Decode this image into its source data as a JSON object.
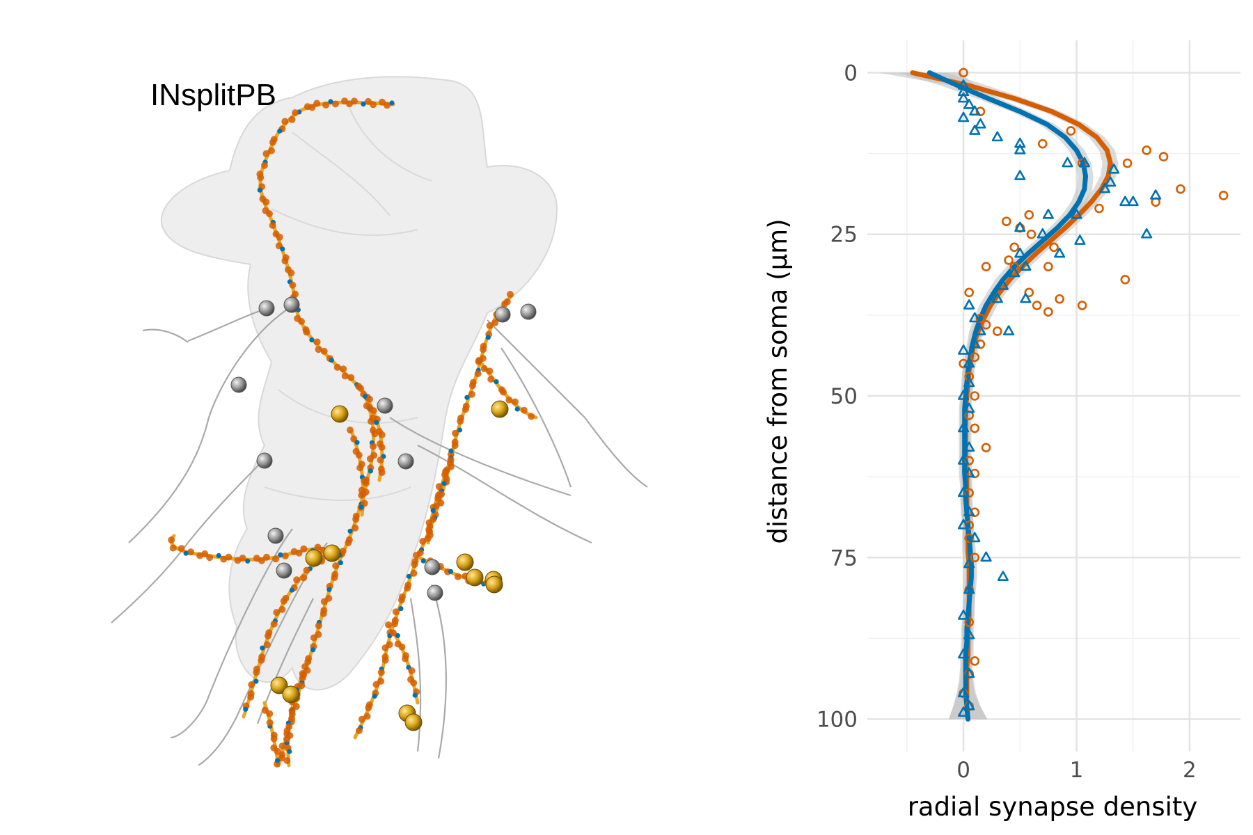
{
  "figure": {
    "neuron_label": "INsplitPB"
  },
  "colors": {
    "series_a": "#D55E00",
    "series_b": "#0072B2",
    "dendrite": "#E69F00",
    "synapse_orange": "#D55E00",
    "synapse_blue": "#0072B2",
    "ribbon": "#BDBDBD",
    "grid_major": "#E3E3E3",
    "grid_minor": "#F0F0F0",
    "mesh_fill": "#EBEBEB",
    "soma_gold": "#C8960A",
    "soma_gray": "#8C8C8C"
  },
  "chart_data": {
    "type": "scatter",
    "xlabel": "radial synapse density",
    "ylabel": "distance from soma (μm)",
    "xlim": [
      -0.85,
      2.45
    ],
    "ylim": [
      105,
      -5
    ],
    "y_reversed": true,
    "x_ticks": [
      0,
      1,
      2
    ],
    "y_ticks": [
      0,
      25,
      50,
      75,
      100
    ],
    "grid": true,
    "legend": "none",
    "smooth_a": {
      "y": [
        0,
        2,
        4,
        6,
        8,
        10,
        12,
        14,
        16,
        18,
        20,
        22,
        24,
        26,
        28,
        30,
        32,
        34,
        36,
        38,
        40,
        42,
        44,
        46,
        48,
        50,
        52,
        54,
        56,
        58,
        60,
        62,
        64,
        66,
        68,
        70,
        72,
        74,
        76,
        78,
        80,
        82,
        84,
        86,
        88,
        90,
        92,
        94,
        96,
        98,
        100
      ],
      "x": [
        -0.45,
        0.05,
        0.45,
        0.78,
        1.02,
        1.18,
        1.27,
        1.3,
        1.28,
        1.22,
        1.13,
        1.02,
        0.9,
        0.77,
        0.64,
        0.52,
        0.41,
        0.32,
        0.24,
        0.18,
        0.13,
        0.09,
        0.07,
        0.05,
        0.04,
        0.03,
        0.02,
        0.02,
        0.02,
        0.02,
        0.02,
        0.03,
        0.03,
        0.03,
        0.03,
        0.04,
        0.04,
        0.04,
        0.05,
        0.05,
        0.05,
        0.05,
        0.05,
        0.04,
        0.04,
        0.04,
        0.03,
        0.03,
        0.03,
        0.03,
        0.04
      ],
      "se": [
        0.3,
        0.16,
        0.1,
        0.08,
        0.07,
        0.07,
        0.07,
        0.07,
        0.07,
        0.07,
        0.07,
        0.07,
        0.07,
        0.07,
        0.07,
        0.07,
        0.07,
        0.06,
        0.06,
        0.06,
        0.06,
        0.05,
        0.05,
        0.05,
        0.05,
        0.05,
        0.05,
        0.05,
        0.05,
        0.05,
        0.05,
        0.05,
        0.05,
        0.05,
        0.05,
        0.05,
        0.05,
        0.05,
        0.05,
        0.05,
        0.05,
        0.05,
        0.05,
        0.05,
        0.05,
        0.05,
        0.05,
        0.06,
        0.08,
        0.12,
        0.17
      ]
    },
    "smooth_b": {
      "y": [
        0,
        2,
        4,
        6,
        8,
        10,
        12,
        14,
        16,
        18,
        20,
        22,
        24,
        26,
        28,
        30,
        32,
        34,
        36,
        38,
        40,
        42,
        44,
        46,
        48,
        50,
        52,
        54,
        56,
        58,
        60,
        62,
        64,
        66,
        68,
        70,
        72,
        74,
        76,
        78,
        80,
        82,
        84,
        86,
        88,
        90,
        92,
        94,
        96,
        98,
        100
      ],
      "x": [
        -0.3,
        -0.05,
        0.22,
        0.5,
        0.74,
        0.9,
        1.0,
        1.06,
        1.08,
        1.07,
        1.02,
        0.94,
        0.83,
        0.7,
        0.57,
        0.45,
        0.35,
        0.27,
        0.2,
        0.15,
        0.11,
        0.08,
        0.06,
        0.04,
        0.03,
        0.02,
        0.01,
        0.01,
        0.01,
        0.01,
        0.01,
        0.01,
        0.02,
        0.02,
        0.03,
        0.04,
        0.05,
        0.06,
        0.07,
        0.07,
        0.06,
        0.05,
        0.04,
        0.03,
        0.03,
        0.02,
        0.02,
        0.02,
        0.02,
        0.03,
        0.04
      ],
      "se": [
        0.28,
        0.15,
        0.1,
        0.08,
        0.07,
        0.07,
        0.07,
        0.07,
        0.07,
        0.07,
        0.07,
        0.07,
        0.07,
        0.07,
        0.07,
        0.07,
        0.07,
        0.06,
        0.06,
        0.06,
        0.06,
        0.05,
        0.05,
        0.05,
        0.05,
        0.05,
        0.05,
        0.05,
        0.05,
        0.05,
        0.05,
        0.05,
        0.05,
        0.05,
        0.05,
        0.05,
        0.05,
        0.05,
        0.05,
        0.05,
        0.05,
        0.05,
        0.05,
        0.05,
        0.05,
        0.05,
        0.05,
        0.06,
        0.08,
        0.12,
        0.17
      ]
    },
    "points_a": [
      [
        0,
        0
      ],
      [
        0.15,
        6
      ],
      [
        0.95,
        9
      ],
      [
        0.7,
        11
      ],
      [
        1.05,
        14
      ],
      [
        1.62,
        12
      ],
      [
        1.77,
        13
      ],
      [
        1.45,
        14
      ],
      [
        1.7,
        20
      ],
      [
        1.92,
        18
      ],
      [
        2.3,
        19
      ],
      [
        1.2,
        21
      ],
      [
        0.58,
        22
      ],
      [
        0.38,
        23
      ],
      [
        0.5,
        24
      ],
      [
        0.6,
        25
      ],
      [
        0.45,
        27
      ],
      [
        0.8,
        27
      ],
      [
        0.4,
        29
      ],
      [
        0.2,
        30
      ],
      [
        0.45,
        30
      ],
      [
        0.75,
        30
      ],
      [
        1.43,
        32
      ],
      [
        0.58,
        34
      ],
      [
        0.85,
        35
      ],
      [
        0.05,
        34
      ],
      [
        0.65,
        36
      ],
      [
        0.75,
        37
      ],
      [
        1.05,
        36
      ],
      [
        0.15,
        38
      ],
      [
        0.2,
        39
      ],
      [
        0.3,
        40
      ],
      [
        0.15,
        42
      ],
      [
        0.1,
        44
      ],
      [
        0.0,
        45
      ],
      [
        0.05,
        47
      ],
      [
        0.1,
        50
      ],
      [
        0.05,
        53
      ],
      [
        0.1,
        55
      ],
      [
        0.2,
        58
      ],
      [
        0.05,
        60
      ],
      [
        0.1,
        62
      ],
      [
        0.05,
        65
      ],
      [
        0.1,
        68
      ],
      [
        0.05,
        70
      ],
      [
        0.05,
        72
      ],
      [
        0.1,
        75
      ],
      [
        0.05,
        80
      ],
      [
        0.05,
        85
      ],
      [
        0.1,
        91
      ],
      [
        0.05,
        93
      ],
      [
        0.0,
        96
      ],
      [
        0.05,
        98
      ]
    ],
    "points_b": [
      [
        0,
        2
      ],
      [
        0,
        3
      ],
      [
        0,
        4
      ],
      [
        0.05,
        5
      ],
      [
        0.1,
        6
      ],
      [
        0.0,
        7
      ],
      [
        0.15,
        8
      ],
      [
        0.1,
        9
      ],
      [
        0.3,
        10
      ],
      [
        0.5,
        11
      ],
      [
        0.5,
        12
      ],
      [
        0.92,
        14
      ],
      [
        1.07,
        14
      ],
      [
        1.33,
        15
      ],
      [
        1.3,
        17
      ],
      [
        0.5,
        16
      ],
      [
        1.25,
        18
      ],
      [
        1.43,
        20
      ],
      [
        1.5,
        20
      ],
      [
        1.7,
        19
      ],
      [
        0.75,
        22
      ],
      [
        1.0,
        22
      ],
      [
        0.5,
        24
      ],
      [
        0.7,
        25
      ],
      [
        1.62,
        25
      ],
      [
        1.03,
        26
      ],
      [
        0.5,
        28
      ],
      [
        0.85,
        28
      ],
      [
        0.55,
        30
      ],
      [
        0.45,
        31
      ],
      [
        0.35,
        33
      ],
      [
        0.55,
        35
      ],
      [
        0.3,
        35
      ],
      [
        0.05,
        36
      ],
      [
        0.1,
        38
      ],
      [
        0.4,
        40
      ],
      [
        0.15,
        40
      ],
      [
        0.1,
        42
      ],
      [
        0.0,
        43
      ],
      [
        0.05,
        45
      ],
      [
        0.05,
        48
      ],
      [
        0.0,
        50
      ],
      [
        0.05,
        52
      ],
      [
        0.0,
        55
      ],
      [
        0.05,
        58
      ],
      [
        0.0,
        60
      ],
      [
        0.05,
        62
      ],
      [
        0.0,
        65
      ],
      [
        0.05,
        68
      ],
      [
        0.0,
        70
      ],
      [
        0.1,
        72
      ],
      [
        0.2,
        75
      ],
      [
        0.05,
        76
      ],
      [
        0.35,
        78
      ],
      [
        0.05,
        80
      ],
      [
        0.0,
        84
      ],
      [
        0.05,
        87
      ],
      [
        0.0,
        90
      ],
      [
        0.05,
        93
      ],
      [
        0.0,
        96
      ],
      [
        0.05,
        98
      ],
      [
        0.0,
        99
      ]
    ]
  }
}
